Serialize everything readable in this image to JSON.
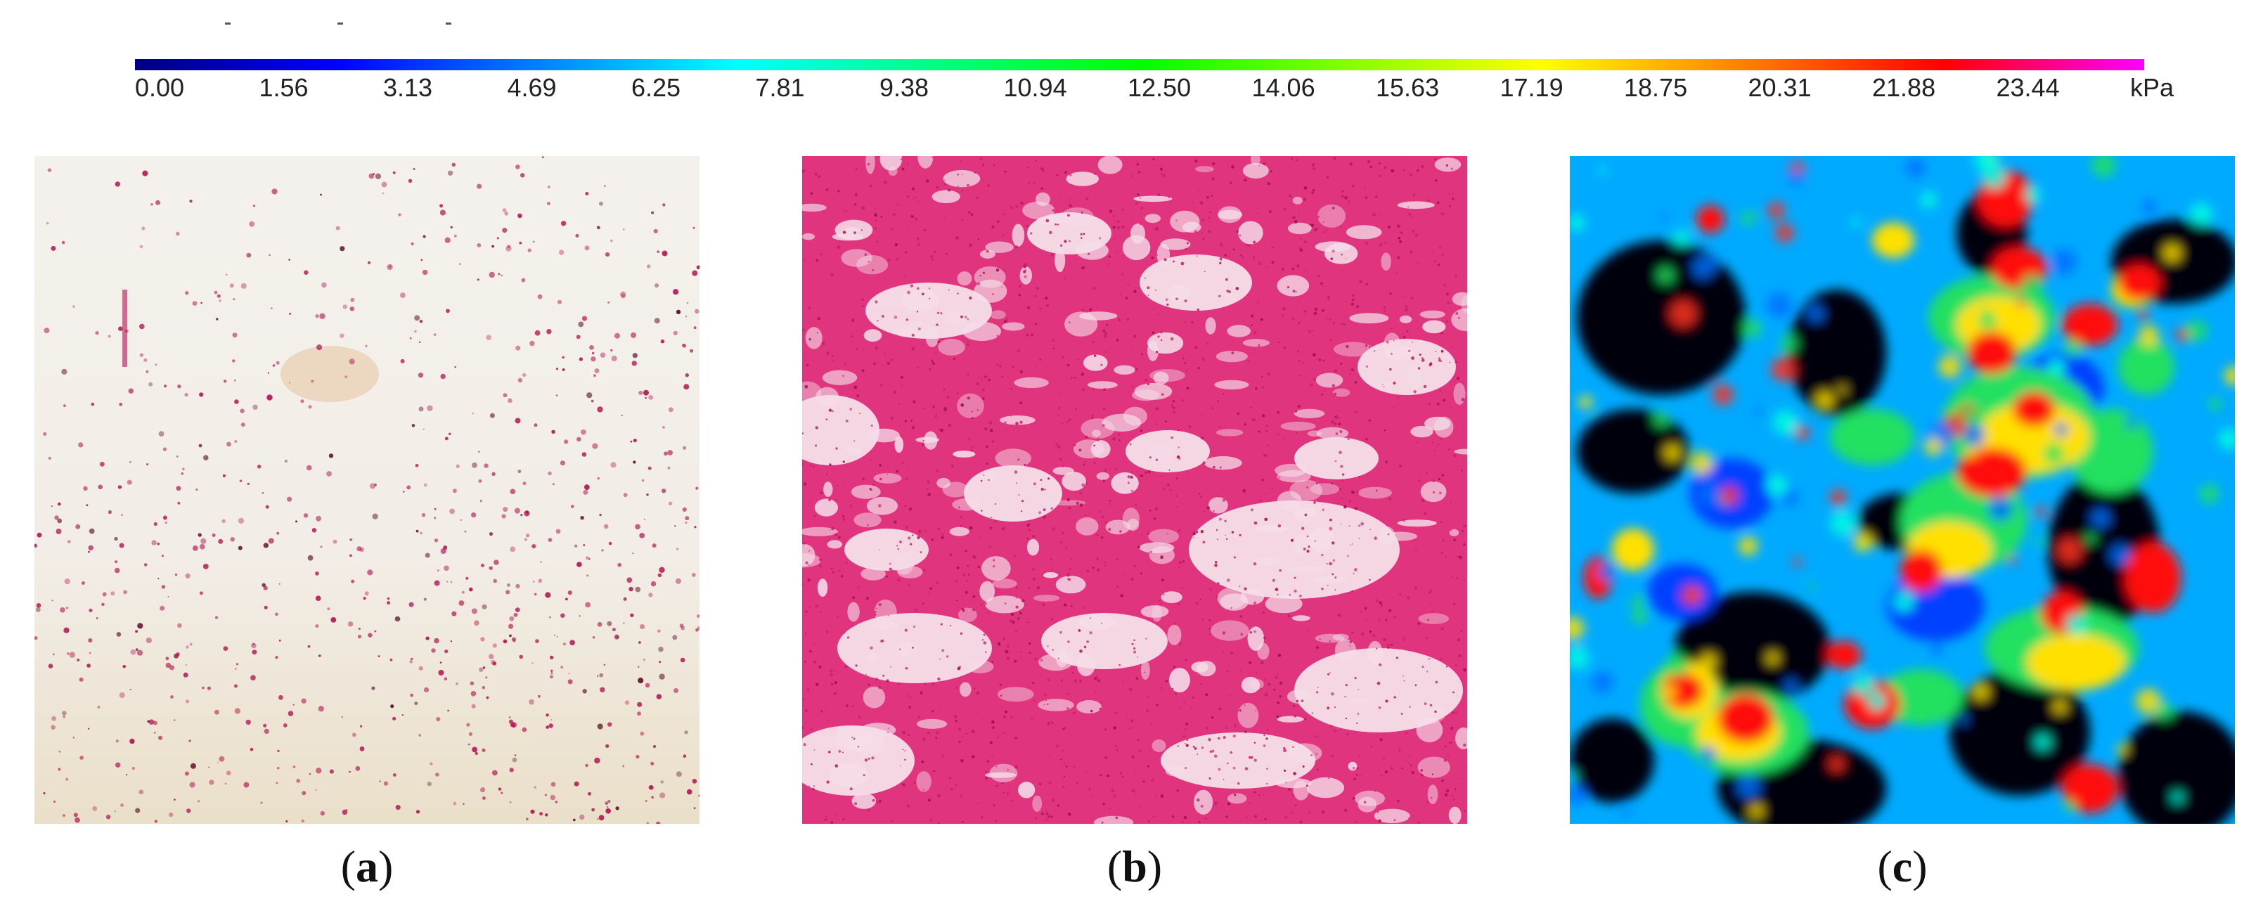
{
  "colorbar": {
    "ticks": [
      "0.00",
      "1.56",
      "3.13",
      "4.69",
      "6.25",
      "7.81",
      "9.38",
      "10.94",
      "12.50",
      "14.06",
      "15.63",
      "17.19",
      "18.75",
      "20.31",
      "21.88",
      "23.44"
    ],
    "unit": "kPa",
    "colors": [
      "#000080",
      "#0000ff",
      "#0080ff",
      "#00ffff",
      "#00ff80",
      "#00ff00",
      "#80ff00",
      "#ffff00",
      "#ff8000",
      "#ff0000",
      "#ff00ff"
    ]
  },
  "panels": [
    {
      "label": "a",
      "kind": "pressure-film-low",
      "base_color": "#f3efe8",
      "dot_color": "#b0104f"
    },
    {
      "label": "b",
      "kind": "pressure-film-high",
      "base_color": "#f8e6ee",
      "dot_color": "#e0207a"
    },
    {
      "label": "c",
      "kind": "pressure-heatmap",
      "background": "#000000"
    }
  ]
}
